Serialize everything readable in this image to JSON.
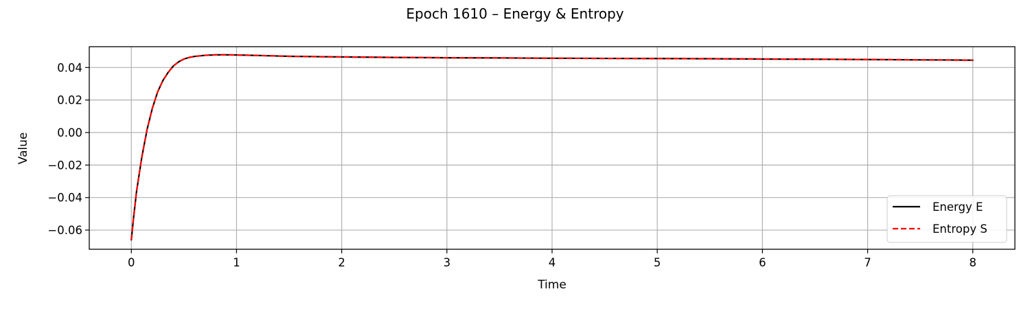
{
  "chart_data": {
    "type": "line",
    "title": "Epoch 1610 – Energy & Entropy",
    "xlabel": "Time",
    "ylabel": "Value",
    "xlim": [
      -0.4,
      8.4
    ],
    "ylim": [
      -0.0718,
      0.0528
    ],
    "xticks": [
      0,
      1,
      2,
      3,
      4,
      5,
      6,
      7,
      8
    ],
    "xtick_labels": [
      "0",
      "1",
      "2",
      "3",
      "4",
      "5",
      "6",
      "7",
      "8"
    ],
    "yticks": [
      -0.06,
      -0.04,
      -0.02,
      0.0,
      0.02,
      0.04
    ],
    "ytick_labels": [
      "−0.06",
      "−0.04",
      "−0.02",
      "0.00",
      "0.02",
      "0.04"
    ],
    "grid": true,
    "legend_position": "lower-right",
    "x": [
      0,
      0.02,
      0.05,
      0.1,
      0.15,
      0.2,
      0.25,
      0.3,
      0.35,
      0.4,
      0.45,
      0.5,
      0.55,
      0.6,
      0.7,
      0.8,
      0.9,
      1.0,
      1.2,
      1.5,
      2.0,
      2.5,
      3.0,
      3.5,
      4.0,
      4.5,
      5.0,
      5.5,
      6.0,
      6.5,
      7.0,
      7.5,
      8.0
    ],
    "series": [
      {
        "name": "Energy E",
        "color": "#000000",
        "style": "solid",
        "values": [
          -0.066,
          -0.053,
          -0.036,
          -0.015,
          0.002,
          0.015,
          0.025,
          0.032,
          0.037,
          0.041,
          0.0435,
          0.0452,
          0.0462,
          0.0468,
          0.0475,
          0.0478,
          0.0478,
          0.0477,
          0.0474,
          0.0469,
          0.0465,
          0.0462,
          0.046,
          0.0459,
          0.0457,
          0.0456,
          0.0455,
          0.0454,
          0.0452,
          0.0451,
          0.0449,
          0.0447,
          0.0445
        ]
      },
      {
        "name": "Entropy S",
        "color": "#ff0000",
        "style": "dashed",
        "values": [
          -0.066,
          -0.053,
          -0.036,
          -0.015,
          0.002,
          0.015,
          0.025,
          0.032,
          0.037,
          0.041,
          0.0435,
          0.0452,
          0.0462,
          0.0468,
          0.0475,
          0.0478,
          0.0478,
          0.0477,
          0.0474,
          0.0469,
          0.0465,
          0.0462,
          0.046,
          0.0459,
          0.0457,
          0.0456,
          0.0455,
          0.0454,
          0.0452,
          0.0451,
          0.0449,
          0.0447,
          0.0445
        ]
      }
    ]
  }
}
